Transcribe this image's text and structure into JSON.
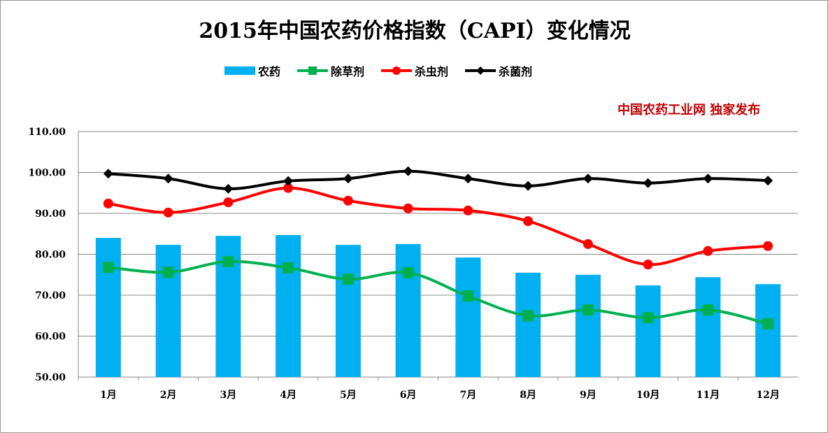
{
  "chart_data": {
    "type": "bar+line",
    "title": "2015年中国农药价格指数（CAPI）变化情况",
    "annotation": "中国农药工业网 独家发布",
    "categories": [
      "1月",
      "2月",
      "3月",
      "4月",
      "5月",
      "6月",
      "7月",
      "8月",
      "9月",
      "10月",
      "11月",
      "12月"
    ],
    "ylim": [
      50,
      110
    ],
    "yticks": [
      "50.00",
      "60.00",
      "70.00",
      "80.00",
      "90.00",
      "100.00",
      "110.00"
    ],
    "grid": true,
    "legend_position": "top",
    "series": [
      {
        "name": "农药",
        "type": "bar",
        "color": "#00b0f0",
        "values": [
          84.0,
          82.3,
          84.5,
          84.7,
          82.3,
          82.5,
          79.2,
          75.5,
          75.0,
          72.4,
          74.4,
          72.7
        ]
      },
      {
        "name": "除草剂",
        "type": "line",
        "marker": "square",
        "color": "#00b050",
        "values": [
          76.8,
          75.6,
          78.2,
          76.7,
          73.9,
          75.5,
          69.8,
          65.0,
          66.4,
          64.5,
          66.4,
          63.0
        ]
      },
      {
        "name": "杀虫剂",
        "type": "line",
        "marker": "circle",
        "color": "#ff0000",
        "values": [
          92.4,
          90.2,
          92.7,
          96.2,
          93.1,
          91.2,
          90.7,
          88.1,
          82.5,
          77.5,
          80.8,
          82.0
        ]
      },
      {
        "name": "杀菌剂",
        "type": "line",
        "marker": "diamond",
        "color": "#000000",
        "values": [
          99.7,
          98.5,
          96.0,
          97.9,
          98.5,
          100.3,
          98.5,
          96.7,
          98.5,
          97.4,
          98.5,
          98.0
        ]
      }
    ]
  }
}
